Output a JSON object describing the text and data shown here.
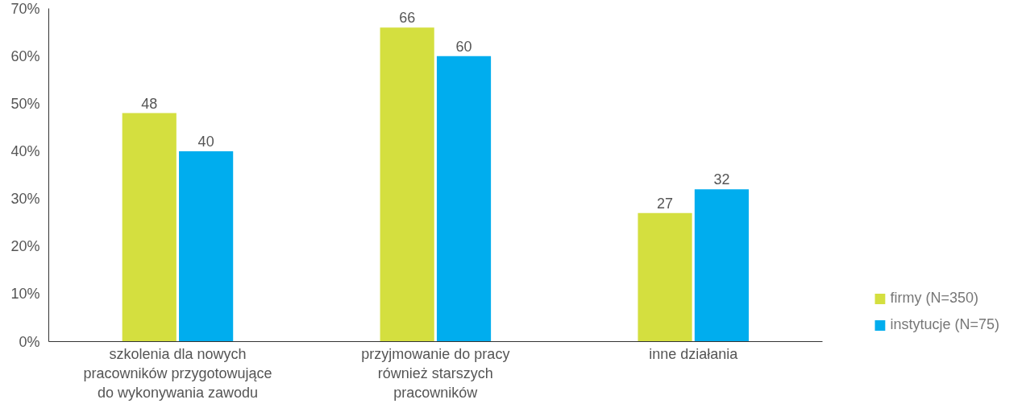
{
  "chart_data": {
    "type": "bar",
    "categories": [
      "szkolenia dla nowych pracowników przygotowujące do wykonywania zawodu",
      "przyjmowanie do pracy również starszych pracowników",
      "inne działania"
    ],
    "series": [
      {
        "name": "firmy (N=350)",
        "color": "#d4df3f",
        "values": [
          48,
          66,
          27
        ]
      },
      {
        "name": "instytucje (N=75)",
        "color": "#00adee",
        "values": [
          40,
          60,
          32
        ]
      }
    ],
    "ylim": [
      0,
      70
    ],
    "yticks": [
      {
        "value": 0,
        "label": "0%"
      },
      {
        "value": 10,
        "label": "10%"
      },
      {
        "value": 20,
        "label": "20%"
      },
      {
        "value": 30,
        "label": "30%"
      },
      {
        "value": 40,
        "label": "40%"
      },
      {
        "value": 50,
        "label": "50%"
      },
      {
        "value": 60,
        "label": "60%"
      },
      {
        "value": 70,
        "label": "70%"
      }
    ],
    "data_labels": true,
    "grid": false,
    "legend": "bottom right"
  }
}
